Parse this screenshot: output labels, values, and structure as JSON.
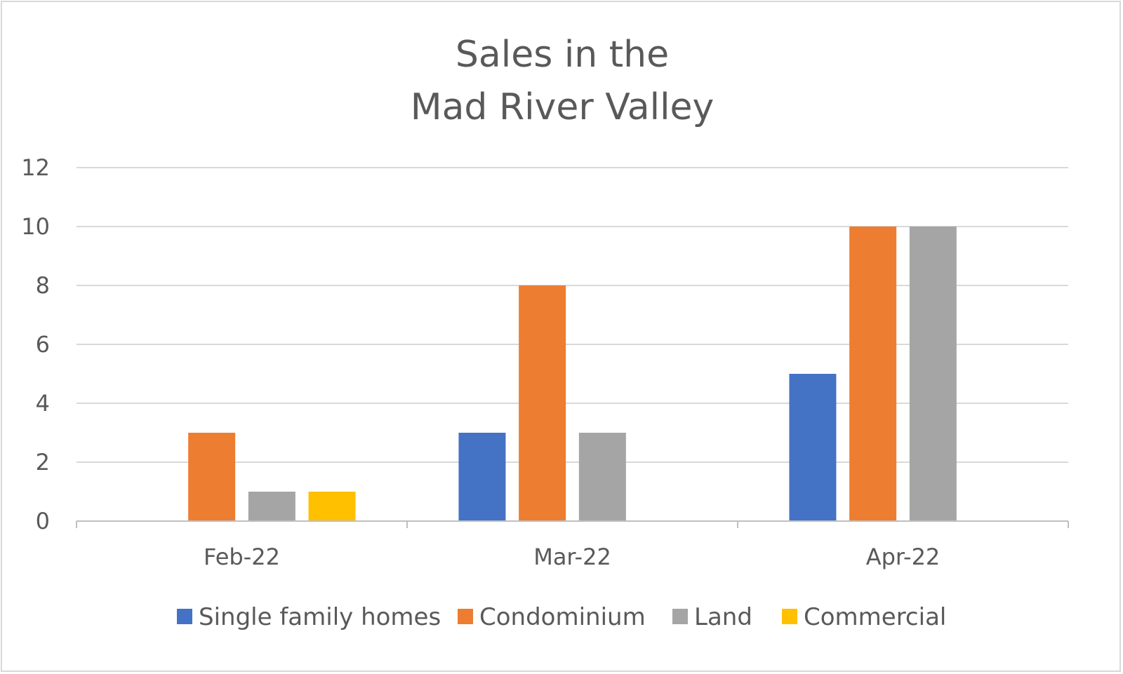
{
  "chart_data": {
    "type": "bar",
    "title_lines": [
      "Sales in the",
      "Mad River Valley"
    ],
    "categories": [
      "Feb-22",
      "Mar-22",
      "Apr-22"
    ],
    "series": [
      {
        "name": "Single family homes",
        "color": "#4472c4",
        "values": [
          0,
          3,
          5
        ]
      },
      {
        "name": "Condominium",
        "color": "#ed7d31",
        "values": [
          3,
          8,
          10
        ]
      },
      {
        "name": "Land",
        "color": "#a5a5a5",
        "values": [
          1,
          3,
          10
        ]
      },
      {
        "name": "Commercial",
        "color": "#ffc000",
        "values": [
          1,
          0,
          0
        ]
      }
    ],
    "ylim": [
      0,
      12
    ],
    "yticks": [
      "0",
      "2",
      "4",
      "6",
      "8",
      "10",
      "12"
    ],
    "grid": true,
    "legend_position": "bottom",
    "gridline_color": "#d9d9d9",
    "axis_color": "#bfbfbf"
  }
}
